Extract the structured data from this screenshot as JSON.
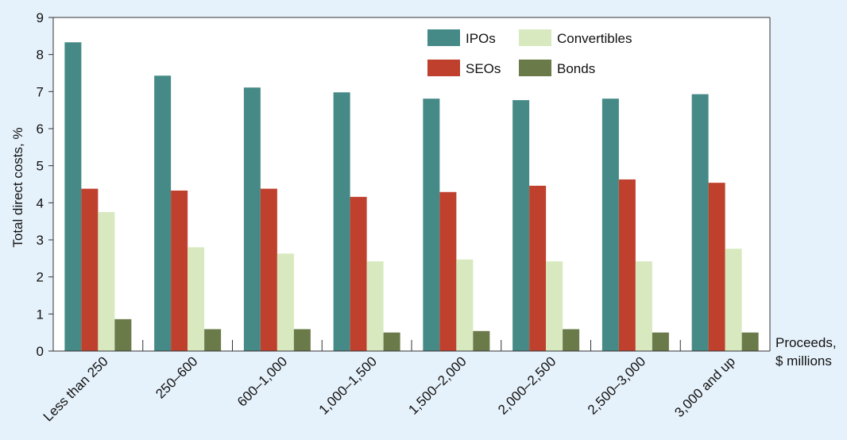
{
  "chart_data": {
    "type": "bar",
    "title": "",
    "ylabel": "Total direct costs, %",
    "xlabel_lines": [
      "Proceeds,",
      "$ millions"
    ],
    "ylim": [
      0,
      9
    ],
    "yticks": [
      "0",
      "1",
      "2",
      "3",
      "4",
      "5",
      "6",
      "7",
      "8",
      "9"
    ],
    "categories": [
      "Less than 250",
      "250–600",
      "600–1,000",
      "1,000–1,500",
      "1,500–2,000",
      "2,000–2,500",
      "2,500–3,000",
      "3,000 and up"
    ],
    "series": [
      {
        "name": "IPOs",
        "color": "#458a87",
        "values": [
          8.33,
          7.43,
          7.11,
          6.98,
          6.81,
          6.77,
          6.81,
          6.93
        ]
      },
      {
        "name": "SEOs",
        "color": "#c0402e",
        "values": [
          4.38,
          4.33,
          4.38,
          4.16,
          4.29,
          4.46,
          4.63,
          4.54
        ]
      },
      {
        "name": "Convertibles",
        "color": "#d8e9bf",
        "values": [
          3.75,
          2.8,
          2.63,
          2.42,
          2.47,
          2.42,
          2.42,
          2.76
        ]
      },
      {
        "name": "Bonds",
        "color": "#6b7a49",
        "values": [
          0.86,
          0.59,
          0.59,
          0.5,
          0.54,
          0.59,
          0.5,
          0.5
        ]
      }
    ],
    "legend_position": "top-right",
    "grid": false
  }
}
